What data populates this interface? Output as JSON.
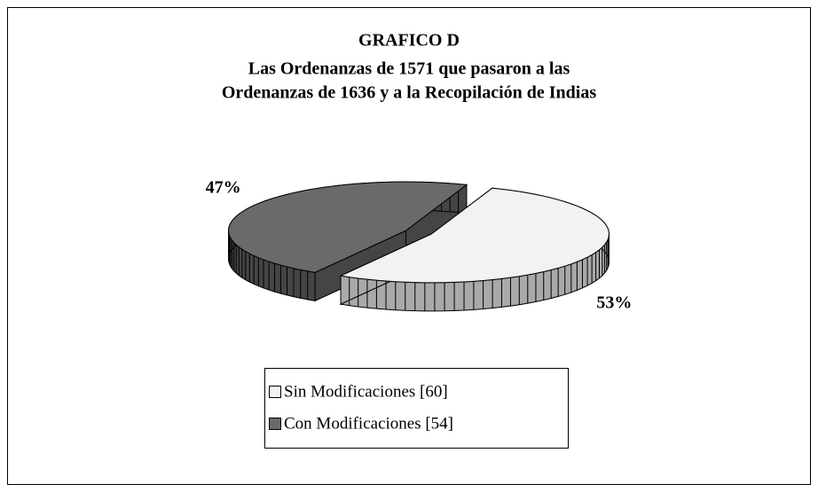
{
  "chart_data": {
    "type": "pie",
    "three_d": true,
    "exploded": true,
    "title": "GRAFICO D",
    "subtitle": [
      "Las Ordenanzas de 1571 que pasaron a las",
      "Ordenanzas de 1636 y a la Recopilación de Indias"
    ],
    "categories": [
      "Sin Modificaciones [60]",
      "Con Modificaciones [54]"
    ],
    "values": [
      53,
      47
    ],
    "value_labels": [
      "53%",
      "47%"
    ],
    "colors": [
      "#f2f2f2",
      "#6a6a6a"
    ],
    "legend": "bottom"
  }
}
